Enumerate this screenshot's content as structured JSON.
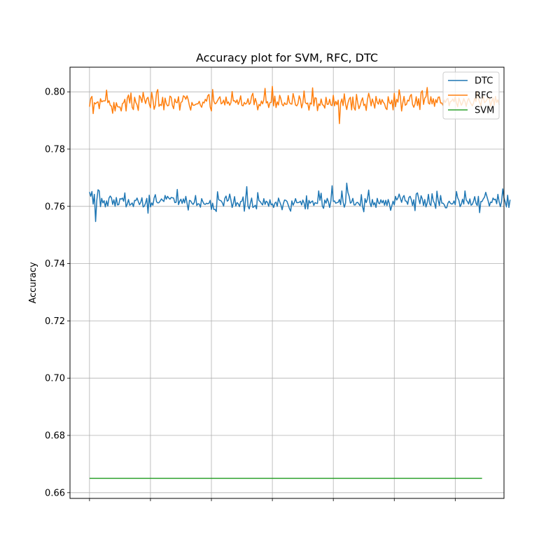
{
  "chart_data": {
    "type": "line",
    "title": "Accuracy plot  for SVM, RFC, DTC",
    "xlabel": "",
    "ylabel": "Accuracy",
    "xlim": [
      -16,
      340
    ],
    "ylim": [
      0.658,
      0.8086
    ],
    "yticks": [
      0.66,
      0.68,
      0.7,
      0.72,
      0.74,
      0.76,
      0.78,
      0.8
    ],
    "ytick_labels": [
      "0.66",
      "0.68",
      "0.70",
      "0.72",
      "0.74",
      "0.76",
      "0.78",
      "0.80"
    ],
    "xticks": [
      0,
      50,
      100,
      150,
      200,
      250,
      300
    ],
    "grid": true,
    "legend_position": "top-right",
    "x": {
      "start": 0,
      "end": 322,
      "step": 1
    },
    "series": [
      {
        "name": "DTC",
        "color": "#1f77b4",
        "values": [
          0.765,
          0.7635,
          0.7652,
          0.7608,
          0.7642,
          0.7547,
          0.7622,
          0.7658,
          0.7654,
          0.7599,
          0.7628,
          0.7612,
          0.762,
          0.7598,
          0.7619,
          0.7601,
          0.7629,
          0.7636,
          0.763,
          0.7607,
          0.7623,
          0.76,
          0.7631,
          0.7605,
          0.7606,
          0.7627,
          0.7625,
          0.7629,
          0.7618,
          0.7647,
          0.7598,
          0.7608,
          0.7624,
          0.7604,
          0.7607,
          0.7612,
          0.7599,
          0.7621,
          0.762,
          0.7629,
          0.7617,
          0.7606,
          0.7614,
          0.763,
          0.7598,
          0.7601,
          0.7612,
          0.7628,
          0.7576,
          0.7639,
          0.7598,
          0.7612,
          0.7604,
          0.7629,
          0.7641,
          0.7616,
          0.7612,
          0.7613,
          0.7619,
          0.7626,
          0.7621,
          0.7617,
          0.7638,
          0.7625,
          0.7635,
          0.7629,
          0.7625,
          0.7631,
          0.763,
          0.7629,
          0.7613,
          0.7614,
          0.7659,
          0.7606,
          0.7618,
          0.7625,
          0.761,
          0.7626,
          0.7612,
          0.7635,
          0.7611,
          0.7587,
          0.7621,
          0.7619,
          0.7611,
          0.7607,
          0.7614,
          0.7638,
          0.7603,
          0.7609,
          0.7608,
          0.7597,
          0.7627,
          0.7616,
          0.7608,
          0.7607,
          0.7611,
          0.7609,
          0.7611,
          0.7621,
          0.7589,
          0.7611,
          0.7589,
          0.7589,
          0.7582,
          0.7651,
          0.7623,
          0.7621,
          0.7619,
          0.7612,
          0.7601,
          0.7628,
          0.7636,
          0.7618,
          0.7622,
          0.7643,
          0.7622,
          0.7596,
          0.7611,
          0.7634,
          0.7601,
          0.7613,
          0.7609,
          0.7599,
          0.7617,
          0.7618,
          0.7633,
          0.7583,
          0.7621,
          0.7669,
          0.7601,
          0.7591,
          0.7612,
          0.7629,
          0.7596,
          0.7599,
          0.7604,
          0.7591,
          0.7648,
          0.762,
          0.7617,
          0.761,
          0.7605,
          0.7627,
          0.7607,
          0.7618,
          0.7614,
          0.76,
          0.7623,
          0.7605,
          0.7609,
          0.7596,
          0.7611,
          0.7615,
          0.76,
          0.7629,
          0.7616,
          0.7605,
          0.7588,
          0.7609,
          0.7622,
          0.7621,
          0.7617,
          0.7605,
          0.7592,
          0.7583,
          0.7619,
          0.7604,
          0.7613,
          0.7627,
          0.7613,
          0.7613,
          0.7614,
          0.7618,
          0.7605,
          0.7622,
          0.7612,
          0.7591,
          0.7637,
          0.7591,
          0.7621,
          0.7611,
          0.7616,
          0.7619,
          0.7603,
          0.7613,
          0.7611,
          0.761,
          0.7654,
          0.7621,
          0.7646,
          0.7601,
          0.7593,
          0.7622,
          0.7611,
          0.7628,
          0.7615,
          0.7596,
          0.7619,
          0.7672,
          0.7617,
          0.7619,
          0.7611,
          0.7613,
          0.7614,
          0.7624,
          0.7606,
          0.7654,
          0.7616,
          0.7597,
          0.7611,
          0.7681,
          0.7648,
          0.7635,
          0.7611,
          0.7615,
          0.7628,
          0.7605,
          0.7605,
          0.7613,
          0.7614,
          0.7608,
          0.7602,
          0.7641,
          0.7599,
          0.7581,
          0.7627,
          0.7613,
          0.7626,
          0.7657,
          0.7613,
          0.7599,
          0.7624,
          0.7605,
          0.7613,
          0.7596,
          0.7628,
          0.7612,
          0.7609,
          0.7623,
          0.7612,
          0.7621,
          0.7604,
          0.7621,
          0.7603,
          0.7624,
          0.7609,
          0.7586,
          0.7602,
          0.7618,
          0.7605,
          0.7635,
          0.7622,
          0.7629,
          0.7643,
          0.7628,
          0.7614,
          0.7631,
          0.7638,
          0.7619,
          0.7618,
          0.7607,
          0.7631,
          0.7635,
          0.7623,
          0.7603,
          0.7623,
          0.7585,
          0.7643,
          0.7647,
          0.7627,
          0.7609,
          0.7637,
          0.7626,
          0.7603,
          0.7624,
          0.7598,
          0.7612,
          0.7642,
          0.7609,
          0.7603,
          0.7644,
          0.7619,
          0.7611,
          0.7593,
          0.7653,
          0.7621,
          0.7603,
          0.7638,
          0.7611,
          0.7611,
          0.7606,
          0.7595,
          0.7595,
          0.7611,
          0.7618,
          0.7611,
          0.7608,
          0.7609,
          0.7619,
          0.7606,
          0.7652,
          0.763,
          0.7621,
          0.7599,
          0.7608,
          0.7625,
          0.7608,
          0.7654,
          0.7622,
          0.7617,
          0.7608,
          0.7626,
          0.7604,
          0.7607,
          0.7618,
          0.7634,
          0.7611,
          0.7603,
          0.7635,
          0.7578,
          0.7617,
          0.7617,
          0.7626,
          0.7632,
          0.7649,
          0.7634,
          0.7619,
          0.7601,
          0.7615,
          0.7613,
          0.7629,
          0.7623,
          0.7625,
          0.7609,
          0.7642,
          0.7616,
          0.7599,
          0.7617,
          0.7661,
          0.7629,
          0.7615,
          0.7598,
          0.7639,
          0.7596,
          0.7623
        ]
      },
      {
        "name": "RFC",
        "color": "#ff7f0e",
        "values": [
          0.7948,
          0.7977,
          0.7984,
          0.7924,
          0.7962,
          0.7958,
          0.7963,
          0.7965,
          0.7941,
          0.7976,
          0.7965,
          0.7968,
          0.7968,
          0.7969,
          0.8006,
          0.7962,
          0.7969,
          0.7953,
          0.795,
          0.7925,
          0.7963,
          0.7933,
          0.7962,
          0.7948,
          0.7947,
          0.7947,
          0.7933,
          0.7959,
          0.7962,
          0.7974,
          0.7933,
          0.7978,
          0.7989,
          0.7961,
          0.7996,
          0.7946,
          0.7938,
          0.7981,
          0.7963,
          0.7954,
          0.7935,
          0.7987,
          0.7979,
          0.7963,
          0.7998,
          0.7975,
          0.7959,
          0.7976,
          0.7981,
          0.7958,
          0.7944,
          0.7998,
          0.7974,
          0.7939,
          0.7953,
          0.7998,
          0.8008,
          0.7949,
          0.7956,
          0.7952,
          0.7981,
          0.7937,
          0.7978,
          0.7959,
          0.7951,
          0.7953,
          0.7985,
          0.7981,
          0.7953,
          0.7941,
          0.7975,
          0.7963,
          0.7962,
          0.7983,
          0.7936,
          0.7963,
          0.7966,
          0.7986,
          0.7983,
          0.7974,
          0.7986,
          0.7972,
          0.7951,
          0.7936,
          0.7963,
          0.7953,
          0.7953,
          0.7956,
          0.7958,
          0.7958,
          0.7967,
          0.7953,
          0.7946,
          0.7964,
          0.7961,
          0.7974,
          0.7967,
          0.7986,
          0.7991,
          0.7947,
          0.7933,
          0.8008,
          0.7967,
          0.7958,
          0.7961,
          0.7969,
          0.7977,
          0.7983,
          0.7958,
          0.7961,
          0.7971,
          0.7954,
          0.7982,
          0.7959,
          0.7965,
          0.7953,
          0.7962,
          0.8001,
          0.7968,
          0.7969,
          0.7962,
          0.7972,
          0.7956,
          0.7967,
          0.7986,
          0.7953,
          0.7951,
          0.7963,
          0.7957,
          0.7961,
          0.7976,
          0.7956,
          0.7961,
          0.7985,
          0.7995,
          0.7955,
          0.7977,
          0.7963,
          0.7937,
          0.7956,
          0.7951,
          0.7968,
          0.7958,
          0.7973,
          0.8012,
          0.7961,
          0.7966,
          0.7945,
          0.7962,
          0.7963,
          0.8019,
          0.7951,
          0.7985,
          0.7945,
          0.7965,
          0.7954,
          0.7988,
          0.7975,
          0.7956,
          0.7951,
          0.7962,
          0.7956,
          0.7957,
          0.7987,
          0.7963,
          0.7958,
          0.7957,
          0.7994,
          0.7976,
          0.7954,
          0.7951,
          0.7959,
          0.7986,
          0.7973,
          0.7944,
          0.7961,
          0.8003,
          0.7963,
          0.7958,
          0.7961,
          0.7936,
          0.7961,
          0.7957,
          0.8014,
          0.7951,
          0.7979,
          0.7978,
          0.7934,
          0.7958,
          0.7952,
          0.7975,
          0.7955,
          0.7953,
          0.7943,
          0.7981,
          0.7956,
          0.7957,
          0.7974,
          0.7954,
          0.7952,
          0.7988,
          0.7951,
          0.7967,
          0.7955,
          0.7971,
          0.7889,
          0.7961,
          0.7975,
          0.7952,
          0.7993,
          0.7958,
          0.7938,
          0.7961,
          0.7975,
          0.7981,
          0.7937,
          0.7982,
          0.7944,
          0.7936,
          0.7991,
          0.7962,
          0.7941,
          0.7952,
          0.7968,
          0.7979,
          0.7952,
          0.7957,
          0.7935,
          0.7973,
          0.7995,
          0.7978,
          0.7951,
          0.7975,
          0.7961,
          0.7943,
          0.7984,
          0.7963,
          0.7957,
          0.7975,
          0.7956,
          0.7973,
          0.7964,
          0.7958,
          0.7943,
          0.7938,
          0.7983,
          0.7962,
          0.7958,
          0.7971,
          0.7937,
          0.7995,
          0.7948,
          0.7974,
          0.7964,
          0.8007,
          0.7982,
          0.7933,
          0.7962,
          0.7984,
          0.7953,
          0.7956,
          0.7971,
          0.7968,
          0.7985,
          0.7991,
          0.7956,
          0.7946,
          0.7958,
          0.7983,
          0.7952,
          0.7976,
          0.7938,
          0.7997,
          0.8004,
          0.7956,
          0.7978,
          0.7983,
          0.8015,
          0.7961,
          0.7957,
          0.7983,
          0.7958,
          0.7976,
          0.7949,
          0.7973,
          0.7962,
          0.7981,
          0.7982,
          0.7961,
          0.7961,
          0.7952,
          0.7971,
          0.7963,
          0.7974,
          0.7977,
          0.7951,
          0.7966,
          0.7968,
          0.7975,
          0.7965,
          0.7982,
          0.7961,
          0.7948,
          0.7978,
          0.7966,
          0.7953,
          0.7961,
          0.7976,
          0.7966,
          0.7949,
          0.7968,
          0.7977,
          0.7966,
          0.7958,
          0.7951,
          0.7961,
          0.7978,
          0.7966,
          0.8001,
          0.7976,
          0.7963,
          0.7952,
          0.7978,
          0.7984,
          0.7962,
          0.7966,
          0.7973,
          0.7981,
          0.7975,
          0.7948,
          0.7967,
          0.7978,
          0.7953,
          0.7984,
          0.7963,
          0.7972,
          0.7955
        ]
      },
      {
        "name": "SVM",
        "color": "#2ca02c",
        "constant": 0.665
      }
    ]
  }
}
